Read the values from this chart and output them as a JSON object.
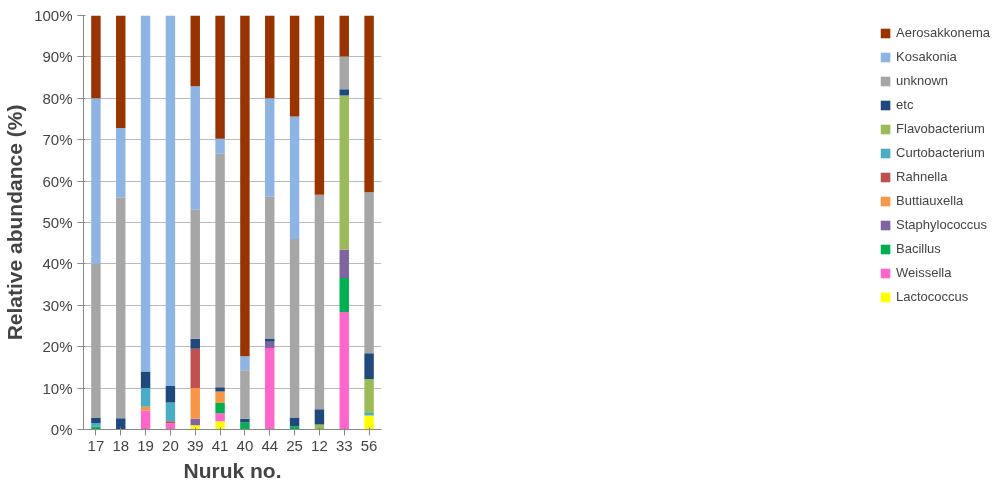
{
  "chart_data": {
    "type": "bar",
    "stacked": true,
    "xlabel": "Nuruk no.",
    "ylabel": "Relative abundance (%)",
    "categories": [
      "17",
      "18",
      "19",
      "20",
      "39",
      "41",
      "40",
      "44",
      "25",
      "12",
      "33",
      "56"
    ],
    "ylim": [
      0,
      100
    ],
    "yticks": [
      {
        "value": 0,
        "label": "0%"
      },
      {
        "value": 10,
        "label": "10%"
      },
      {
        "value": 20,
        "label": "20%"
      },
      {
        "value": 30,
        "label": "30%"
      },
      {
        "value": 40,
        "label": "40%"
      },
      {
        "value": 50,
        "label": "50%"
      },
      {
        "value": 60,
        "label": "60%"
      },
      {
        "value": 70,
        "label": "70%"
      },
      {
        "value": 80,
        "label": "80%"
      },
      {
        "value": 90,
        "label": "90%"
      },
      {
        "value": 100,
        "label": "100%"
      }
    ],
    "grid": "y",
    "legend": "right",
    "series": [
      {
        "name": "Lactococcus",
        "color": "#ffff00",
        "values": [
          0,
          0,
          0,
          0,
          1,
          2,
          0,
          0,
          0,
          0,
          0,
          3.4
        ]
      },
      {
        "name": "Weissella",
        "color": "#ff66cc",
        "values": [
          0,
          0,
          4.5,
          1.5,
          0,
          1.9,
          0,
          19.7,
          0,
          0,
          28.4,
          0
        ]
      },
      {
        "name": "Bacillus",
        "color": "#00b050",
        "values": [
          0.7,
          0,
          0,
          0,
          0,
          2.5,
          1.7,
          0,
          0.8,
          0,
          8.2,
          0
        ]
      },
      {
        "name": "Staphylococcus",
        "color": "#8064a2",
        "values": [
          0,
          0,
          0,
          0,
          1.6,
          0,
          0,
          1.5,
          0,
          0,
          6.8,
          0
        ]
      },
      {
        "name": "Buttiauxella",
        "color": "#f79646",
        "values": [
          0,
          0,
          1,
          0,
          7.4,
          2.8,
          0,
          0,
          0,
          0,
          0,
          0
        ]
      },
      {
        "name": "Rahnella",
        "color": "#c0504d",
        "values": [
          0,
          0,
          0,
          0.5,
          9.5,
          0,
          0,
          0,
          0,
          0,
          0,
          0
        ]
      },
      {
        "name": "Curtobacterium",
        "color": "#4bacc6",
        "values": [
          0.8,
          0,
          4.5,
          4.5,
          0,
          0,
          0,
          0,
          0,
          0,
          0,
          0.6
        ]
      },
      {
        "name": "Flavobacterium",
        "color": "#9bbb59",
        "values": [
          0,
          0,
          0,
          0,
          0,
          0,
          0,
          0,
          0,
          1.2,
          37.3,
          8.2
        ]
      },
      {
        "name": "etc",
        "color": "#1f497d",
        "values": [
          1.3,
          2.7,
          4,
          4,
          2.4,
          1,
          0.9,
          0.8,
          2.1,
          3.7,
          1.5,
          6.2
        ]
      },
      {
        "name": "unknown",
        "color": "#a6a6a6",
        "values": [
          37.2,
          53.3,
          0,
          0,
          31.2,
          56.4,
          11.7,
          34.3,
          43.1,
          51.8,
          7.9,
          38.9
        ]
      },
      {
        "name": "Kosakonia",
        "color": "#8db4e2",
        "values": [
          40,
          16.8,
          86,
          89.5,
          29.8,
          3.6,
          3.4,
          23.7,
          29.6,
          0,
          0,
          0
        ]
      },
      {
        "name": "Aerosakkonema",
        "color": "#993300",
        "values": [
          20,
          27.2,
          0,
          0,
          17.1,
          29.8,
          82.3,
          20,
          24.4,
          43.3,
          9.9,
          42.7
        ]
      }
    ]
  }
}
